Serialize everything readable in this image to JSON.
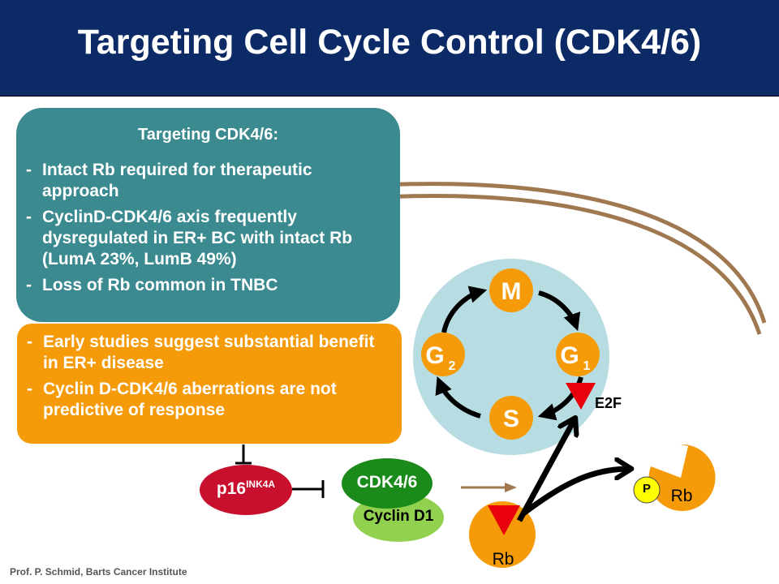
{
  "title": "Targeting Cell Cycle Control (CDK4/6)",
  "teal_box": {
    "heading": "Targeting CDK4/6:",
    "bullets": [
      "Intact Rb required for therapeutic approach",
      "CyclinD-CDK4/6 axis frequently dysregulated in ER+ BC with intact Rb (LumA 23%, LumB 49%)",
      "Loss of Rb common in TNBC"
    ]
  },
  "orange_box": {
    "bullets": [
      "Early studies suggest substantial benefit in ER+ disease",
      "Cyclin D-CDK4/6 aberrations are not predictive of response"
    ]
  },
  "bullet_dash": "-",
  "cycle": {
    "m": "M",
    "g1_base": "G",
    "g1_sub": "1",
    "s": "S",
    "g2_base": "G",
    "g2_sub": "2"
  },
  "e2f": "E2F",
  "p16": {
    "base": "p16",
    "sup": "INK4A"
  },
  "cdk": "CDK4/6",
  "cyclin": "Cyclin D1",
  "rb_bottom": "Rb",
  "rb_right": "Rb",
  "p_badge": "P",
  "footer": "Prof. P. Schmid, Barts Cancer Institute",
  "colors": {
    "title_bg": "#0c2a66",
    "teal": "#3b8a90",
    "orange": "#f59b0a",
    "cycle_bg": "#b7dde2",
    "red": "#e8000b",
    "dark_red": "#c8102e",
    "green": "#1a8a1a",
    "light_green": "#92d050",
    "yellow": "#ffff00",
    "brown": "#a07850"
  }
}
